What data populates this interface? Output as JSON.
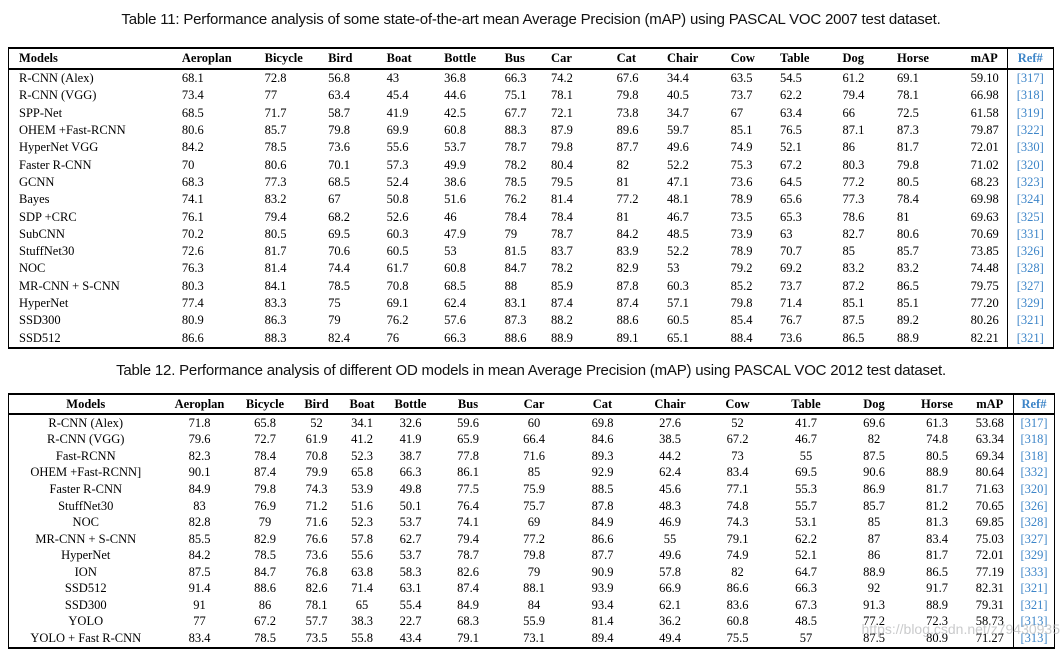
{
  "colors": {
    "ref_link_blue": "#3d85c8",
    "table_border": "#000000",
    "watermark_gray": "#b9babc"
  },
  "watermark": "https://blog.csdn.net/z79430935",
  "table11": {
    "caption": "Table 11: Performance analysis of some state-of-the-art mean Average Precision (mAP) using PASCAL VOC 2007 test dataset.",
    "columns": [
      "Models",
      "Aeroplan",
      "Bicycle",
      "Bird",
      "Boat",
      "Bottle",
      "Bus",
      "Car",
      "Cat",
      "Chair",
      "Cow",
      "Table",
      "Dog",
      "Horse",
      "mAP",
      "Ref#"
    ],
    "rows": [
      [
        "R-CNN (Alex)",
        "68.1",
        "72.8",
        "56.8",
        "43",
        "36.8",
        "66.3",
        "74.2",
        "67.6",
        "34.4",
        "63.5",
        "54.5",
        "61.2",
        "69.1",
        "59.10",
        "[317]"
      ],
      [
        "R-CNN (VGG)",
        "73.4",
        "77",
        "63.4",
        "45.4",
        "44.6",
        "75.1",
        "78.1",
        "79.8",
        "40.5",
        "73.7",
        "62.2",
        "79.4",
        "78.1",
        "66.98",
        "[318]"
      ],
      [
        "SPP-Net",
        "68.5",
        "71.7",
        "58.7",
        "41.9",
        "42.5",
        "67.7",
        "72.1",
        "73.8",
        "34.7",
        "67",
        "63.4",
        "66",
        "72.5",
        "61.58",
        "[319]"
      ],
      [
        "OHEM +Fast-RCNN",
        "80.6",
        "85.7",
        "79.8",
        "69.9",
        "60.8",
        "88.3",
        "87.9",
        "89.6",
        "59.7",
        "85.1",
        "76.5",
        "87.1",
        "87.3",
        "79.87",
        "[322]"
      ],
      [
        "HyperNet VGG",
        "84.2",
        "78.5",
        "73.6",
        "55.6",
        "53.7",
        "78.7",
        "79.8",
        "87.7",
        "49.6",
        "74.9",
        "52.1",
        "86",
        "81.7",
        "72.01",
        "[330]"
      ],
      [
        "Faster R-CNN",
        "70",
        "80.6",
        "70.1",
        "57.3",
        "49.9",
        "78.2",
        "80.4",
        "82",
        "52.2",
        "75.3",
        "67.2",
        "80.3",
        "79.8",
        "71.02",
        "[320]"
      ],
      [
        "GCNN",
        "68.3",
        "77.3",
        "68.5",
        "52.4",
        "38.6",
        "78.5",
        "79.5",
        "81",
        "47.1",
        "73.6",
        "64.5",
        "77.2",
        "80.5",
        "68.23",
        "[323]"
      ],
      [
        "Bayes",
        "74.1",
        "83.2",
        "67",
        "50.8",
        "51.6",
        "76.2",
        "81.4",
        "77.2",
        "48.1",
        "78.9",
        "65.6",
        "77.3",
        "78.4",
        "69.98",
        "[324]"
      ],
      [
        "SDP +CRC",
        "76.1",
        "79.4",
        "68.2",
        "52.6",
        "46",
        "78.4",
        "78.4",
        "81",
        "46.7",
        "73.5",
        "65.3",
        "78.6",
        "81",
        "69.63",
        "[325]"
      ],
      [
        "SubCNN",
        "70.2",
        "80.5",
        "69.5",
        "60.3",
        "47.9",
        "79",
        "78.7",
        "84.2",
        "48.5",
        "73.9",
        "63",
        "82.7",
        "80.6",
        "70.69",
        "[331]"
      ],
      [
        "StuffNet30",
        "72.6",
        "81.7",
        "70.6",
        "60.5",
        "53",
        "81.5",
        "83.7",
        "83.9",
        "52.2",
        "78.9",
        "70.7",
        "85",
        "85.7",
        "73.85",
        "[326]"
      ],
      [
        "NOC",
        "76.3",
        "81.4",
        "74.4",
        "61.7",
        "60.8",
        "84.7",
        "78.2",
        "82.9",
        "53",
        "79.2",
        "69.2",
        "83.2",
        "83.2",
        "74.48",
        "[328]"
      ],
      [
        "MR-CNN + S-CNN",
        "80.3",
        "84.1",
        "78.5",
        "70.8",
        "68.5",
        "88",
        "85.9",
        "87.8",
        "60.3",
        "85.2",
        "73.7",
        "87.2",
        "86.5",
        "79.75",
        "[327]"
      ],
      [
        "HyperNet",
        "77.4",
        "83.3",
        "75",
        "69.1",
        "62.4",
        "83.1",
        "87.4",
        "87.4",
        "57.1",
        "79.8",
        "71.4",
        "85.1",
        "85.1",
        "77.20",
        "[329]"
      ],
      [
        "SSD300",
        "80.9",
        "86.3",
        "79",
        "76.2",
        "57.6",
        "87.3",
        "88.2",
        "88.6",
        "60.5",
        "85.4",
        "76.7",
        "87.5",
        "89.2",
        "80.26",
        "[321]"
      ],
      [
        "SSD512",
        "86.6",
        "88.3",
        "82.4",
        "76",
        "66.3",
        "88.6",
        "88.9",
        "89.1",
        "65.1",
        "88.4",
        "73.6",
        "86.5",
        "88.9",
        "82.21",
        "[321]"
      ]
    ]
  },
  "table12": {
    "caption": "Table 12. Performance analysis of different OD models in mean Average Precision (mAP) using PASCAL VOC 2012 test dataset.",
    "columns": [
      "Models",
      "Aeroplan",
      "Bicycle",
      "Bird",
      "Boat",
      "Bottle",
      "Bus",
      "Car",
      "Cat",
      "Chair",
      "Cow",
      "Table",
      "Dog",
      "Horse",
      "mAP",
      "Ref#"
    ],
    "rows": [
      [
        "R-CNN (Alex)",
        "71.8",
        "65.8",
        "52",
        "34.1",
        "32.6",
        "59.6",
        "60",
        "69.8",
        "27.6",
        "52",
        "41.7",
        "69.6",
        "61.3",
        "53.68",
        "[317]"
      ],
      [
        "R-CNN (VGG)",
        "79.6",
        "72.7",
        "61.9",
        "41.2",
        "41.9",
        "65.9",
        "66.4",
        "84.6",
        "38.5",
        "67.2",
        "46.7",
        "82",
        "74.8",
        "63.34",
        "[318]"
      ],
      [
        "Fast-RCNN",
        "82.3",
        "78.4",
        "70.8",
        "52.3",
        "38.7",
        "77.8",
        "71.6",
        "89.3",
        "44.2",
        "73",
        "55",
        "87.5",
        "80.5",
        "69.34",
        "[318]"
      ],
      [
        "OHEM +Fast-RCNN]",
        "90.1",
        "87.4",
        "79.9",
        "65.8",
        "66.3",
        "86.1",
        "85",
        "92.9",
        "62.4",
        "83.4",
        "69.5",
        "90.6",
        "88.9",
        "80.64",
        "[332]"
      ],
      [
        "Faster R-CNN",
        "84.9",
        "79.8",
        "74.3",
        "53.9",
        "49.8",
        "77.5",
        "75.9",
        "88.5",
        "45.6",
        "77.1",
        "55.3",
        "86.9",
        "81.7",
        "71.63",
        "[320]"
      ],
      [
        "StuffNet30",
        "83",
        "76.9",
        "71.2",
        "51.6",
        "50.1",
        "76.4",
        "75.7",
        "87.8",
        "48.3",
        "74.8",
        "55.7",
        "85.7",
        "81.2",
        "70.65",
        "[326]"
      ],
      [
        "NOC",
        "82.8",
        "79",
        "71.6",
        "52.3",
        "53.7",
        "74.1",
        "69",
        "84.9",
        "46.9",
        "74.3",
        "53.1",
        "85",
        "81.3",
        "69.85",
        "[328]"
      ],
      [
        "MR-CNN + S-CNN",
        "85.5",
        "82.9",
        "76.6",
        "57.8",
        "62.7",
        "79.4",
        "77.2",
        "86.6",
        "55",
        "79.1",
        "62.2",
        "87",
        "83.4",
        "75.03",
        "[327]"
      ],
      [
        "HyperNet",
        "84.2",
        "78.5",
        "73.6",
        "55.6",
        "53.7",
        "78.7",
        "79.8",
        "87.7",
        "49.6",
        "74.9",
        "52.1",
        "86",
        "81.7",
        "72.01",
        "[329]"
      ],
      [
        "ION",
        "87.5",
        "84.7",
        "76.8",
        "63.8",
        "58.3",
        "82.6",
        "79",
        "90.9",
        "57.8",
        "82",
        "64.7",
        "88.9",
        "86.5",
        "77.19",
        "[333]"
      ],
      [
        "SSD512",
        "91.4",
        "88.6",
        "82.6",
        "71.4",
        "63.1",
        "87.4",
        "88.1",
        "93.9",
        "66.9",
        "86.6",
        "66.3",
        "92",
        "91.7",
        "82.31",
        "[321]"
      ],
      [
        "SSD300",
        "91",
        "86",
        "78.1",
        "65",
        "55.4",
        "84.9",
        "84",
        "93.4",
        "62.1",
        "83.6",
        "67.3",
        "91.3",
        "88.9",
        "79.31",
        "[321]"
      ],
      [
        "YOLO",
        "77",
        "67.2",
        "57.7",
        "38.3",
        "22.7",
        "68.3",
        "55.9",
        "81.4",
        "36.2",
        "60.8",
        "48.5",
        "77.2",
        "72.3",
        "58.73",
        "[313]"
      ],
      [
        "YOLO + Fast R-CNN",
        "83.4",
        "78.5",
        "73.5",
        "55.8",
        "43.4",
        "79.1",
        "73.1",
        "89.4",
        "49.4",
        "75.5",
        "57",
        "87.5",
        "80.9",
        "71.27",
        "[313]"
      ]
    ]
  },
  "col_widths": {
    "table11": [
      162,
      82,
      63,
      58,
      57,
      60,
      46,
      65,
      50,
      63,
      49,
      62,
      54,
      73,
      46,
      46
    ],
    "table12": [
      154,
      74,
      57,
      46,
      45,
      52,
      63,
      69,
      68,
      67,
      68,
      69,
      67,
      59,
      47,
      41
    ]
  }
}
